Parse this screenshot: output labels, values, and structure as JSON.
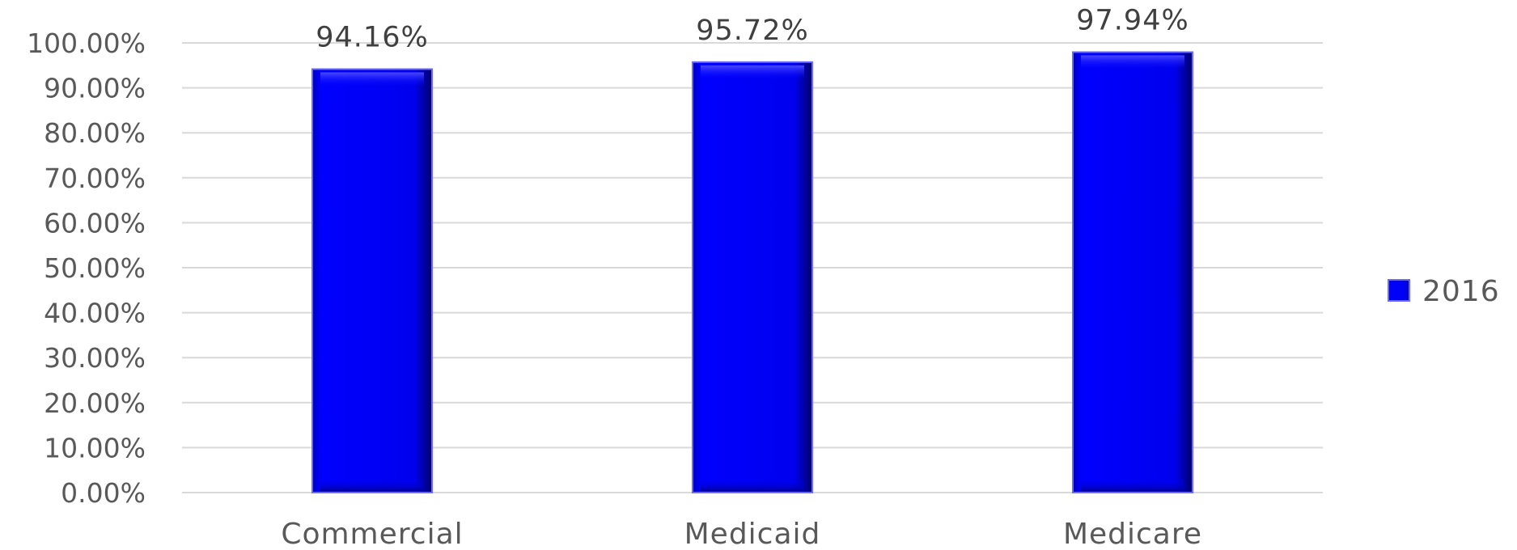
{
  "chart_data": {
    "type": "bar",
    "categories": [
      "Commercial",
      "Medicaid",
      "Medicare"
    ],
    "series": [
      {
        "name": "2016",
        "values": [
          94.16,
          95.72,
          97.94
        ],
        "value_labels": [
          "94.16%",
          "95.72%",
          "97.94%"
        ],
        "color": "#0000ff"
      }
    ],
    "ylim": [
      0,
      100
    ],
    "yticks": [
      0,
      10,
      20,
      30,
      40,
      50,
      60,
      70,
      80,
      90,
      100
    ],
    "ytick_labels": [
      "0.00%",
      "10.00%",
      "20.00%",
      "30.00%",
      "40.00%",
      "50.00%",
      "60.00%",
      "70.00%",
      "80.00%",
      "90.00%",
      "100.00%"
    ],
    "grid": true,
    "legend_position": "right",
    "title": "",
    "xlabel": "",
    "ylabel": ""
  }
}
